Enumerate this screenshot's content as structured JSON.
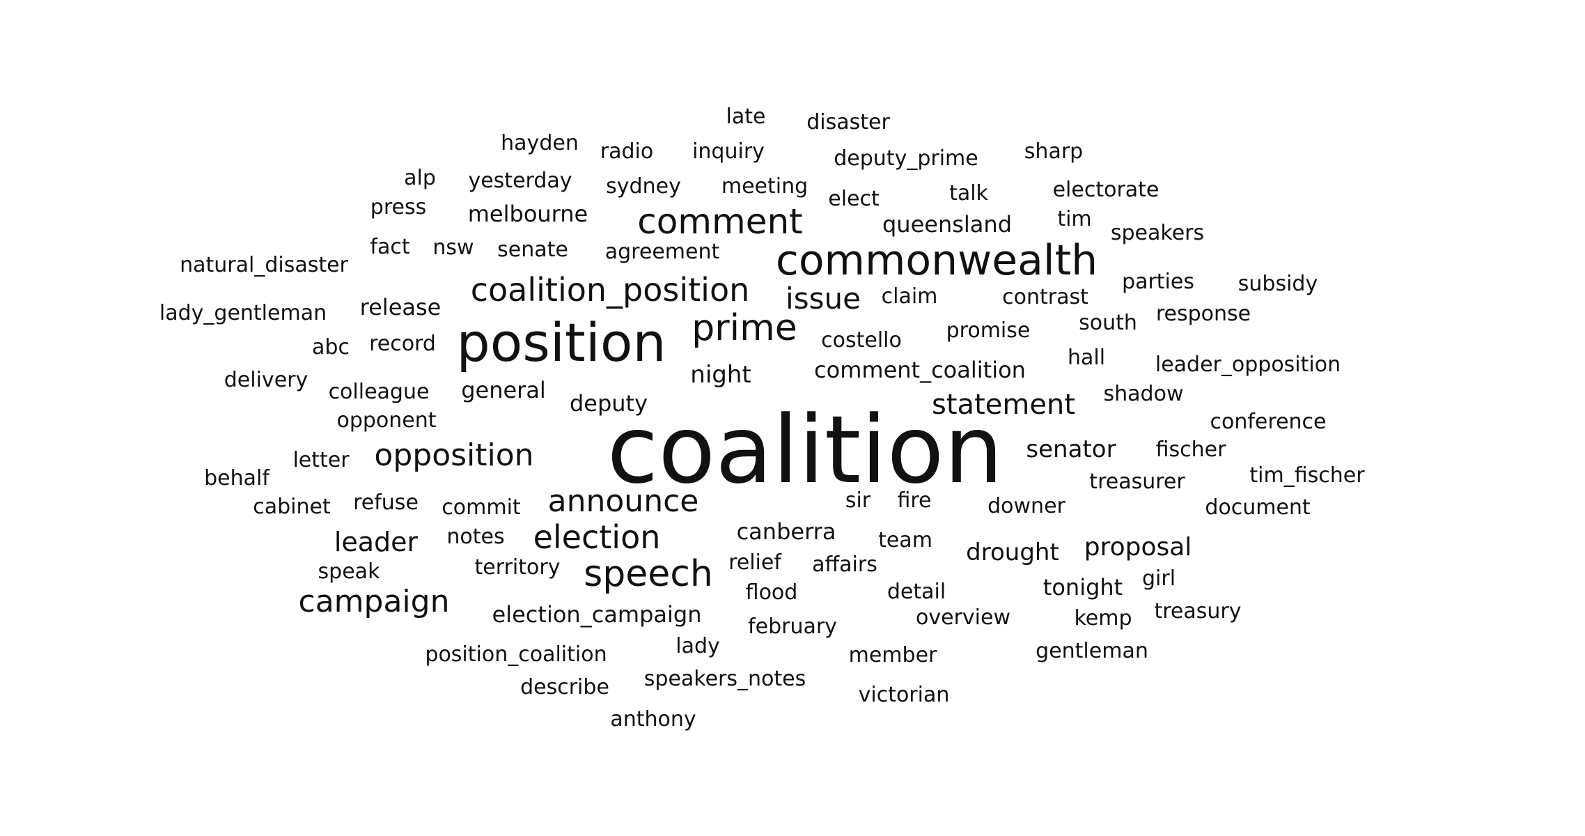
{
  "cloud": {
    "text_color": "#111111",
    "background": "#ffffff",
    "words": [
      "coalition",
      "position",
      "commonwealth",
      "comment",
      "prime",
      "coalition_position",
      "speech",
      "election",
      "announce",
      "opposition",
      "statement",
      "campaign",
      "issue",
      "leader",
      "proposal",
      "drought",
      "senator",
      "night",
      "deputy",
      "tonight",
      "canberra",
      "melbourne",
      "comment_coalition",
      "election_campaign",
      "general",
      "release",
      "queensland",
      "sydney",
      "meeting",
      "sir",
      "fire",
      "flood",
      "deputy_prime",
      "colleague",
      "promise",
      "position_coalition",
      "costello",
      "agreement",
      "senate",
      "treasurer",
      "team",
      "opponent",
      "speakers_notes",
      "lady_gentleman",
      "leader_opposition",
      "yesterday",
      "talk",
      "contrast",
      "claim",
      "inquiry",
      "radio",
      "commit",
      "downer",
      "shadow",
      "fischer",
      "record",
      "victorian",
      "gentleman",
      "detail",
      "member",
      "february",
      "speakers",
      "parties",
      "electorate",
      "natural_disaster",
      "notes",
      "nsw",
      "kemp",
      "territory",
      "south",
      "document",
      "tim_fischer",
      "conference",
      "response",
      "subsidy",
      "sharp",
      "disaster",
      "elect",
      "fact",
      "press",
      "hayden",
      "overview",
      "refuse",
      "cabinet",
      "behalf",
      "delivery",
      "late",
      "hall",
      "affairs",
      "anthony",
      "describe",
      "letter",
      "treasury",
      "girl",
      "tim",
      "alp",
      "abc",
      "relief",
      "lady",
      "speak"
    ]
  }
}
